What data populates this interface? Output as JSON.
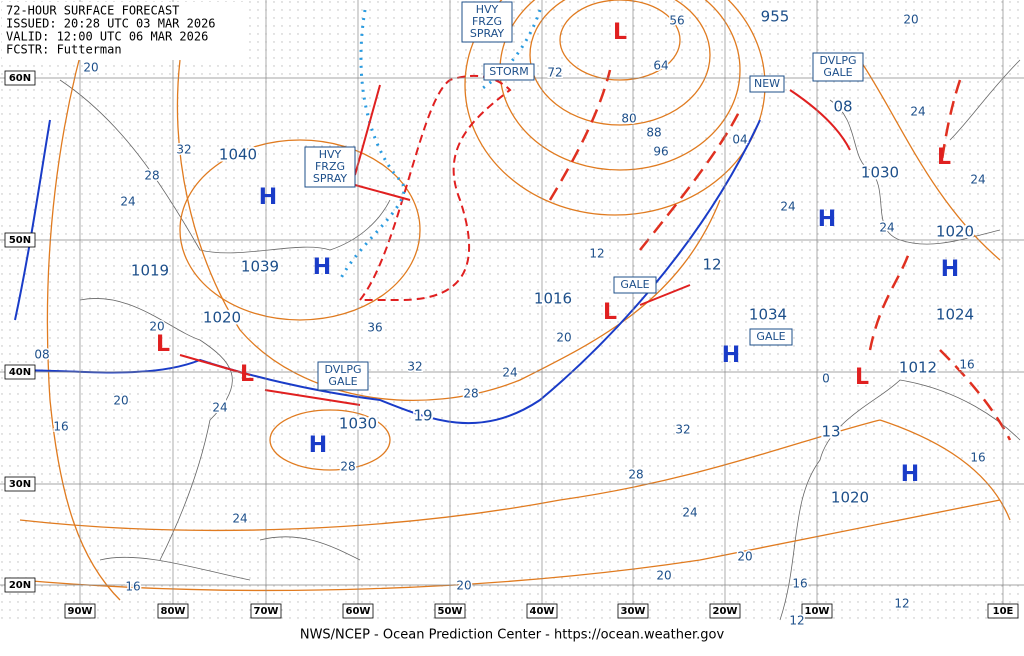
{
  "header": {
    "lines": [
      "72-HOUR SURFACE FORECAST",
      "ISSUED: 20:28 UTC 03 MAR 2026",
      "VALID: 12:00 UTC 06 MAR 2026",
      "FCSTR: Futterman"
    ]
  },
  "lat_labels": [
    "60N",
    "50N",
    "40N",
    "30N",
    "20N"
  ],
  "lon_labels": [
    "90W",
    "80W",
    "70W",
    "60W",
    "50W",
    "40W",
    "30W",
    "20W",
    "10W",
    "10E"
  ],
  "centers": [
    "H",
    "H",
    "L",
    "L",
    "H",
    "L",
    "L",
    "H",
    "H",
    "H",
    "L",
    "H",
    "L"
  ],
  "pressure_labels": [
    "955",
    "08",
    "1030",
    "1020",
    "1024",
    "1012",
    "13",
    "1020",
    "1034",
    "12",
    "1016",
    "19",
    "1030",
    "1020",
    "1019",
    "1039",
    "1040"
  ],
  "isobar_labels": [
    "20",
    "32",
    "28",
    "24",
    "20",
    "08",
    "20",
    "16",
    "24",
    "36",
    "32",
    "28",
    "24",
    "20",
    "12",
    "32",
    "28",
    "24",
    "20",
    "20",
    "20",
    "16",
    "24",
    "28",
    "16",
    "12",
    "12",
    "16",
    "16",
    "24",
    "24",
    "24",
    "24",
    "20",
    "56",
    "64",
    "72",
    "80",
    "88",
    "96",
    "04",
    "0"
  ],
  "boxed_labels": [
    [
      "HVY",
      "FRZG",
      "SPRAY"
    ],
    [
      "HVY",
      "FRZG",
      "SPRAY"
    ],
    [
      "STORM"
    ],
    [
      "DVLPG",
      "GALE"
    ],
    [
      "NEW"
    ],
    [
      "GALE"
    ],
    [
      "GALE"
    ],
    [
      "DVLPG",
      "GALE"
    ]
  ],
  "footer": "NWS/NCEP - Ocean Prediction Center - https://ocean.weather.gov"
}
